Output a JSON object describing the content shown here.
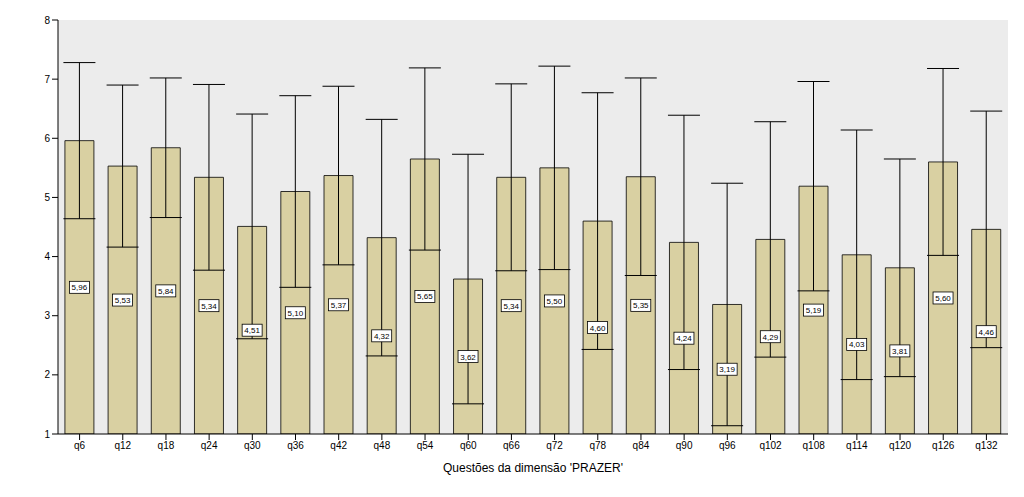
{
  "chart_data": {
    "type": "bar",
    "x_label": "Questões da dimensão 'PRAZER'",
    "categories": [
      "q6",
      "q12",
      "q18",
      "q24",
      "q30",
      "q36",
      "q42",
      "q48",
      "q54",
      "q60",
      "q66",
      "q72",
      "q78",
      "q84",
      "q90",
      "q96",
      "q102",
      "q108",
      "q114",
      "q120",
      "q126",
      "q132"
    ],
    "values": [
      5.96,
      5.53,
      5.84,
      5.34,
      4.51,
      5.1,
      5.37,
      4.32,
      5.65,
      3.62,
      5.34,
      5.5,
      4.6,
      5.35,
      4.24,
      3.19,
      4.29,
      5.19,
      4.03,
      3.81,
      5.6,
      4.46
    ],
    "value_labels": [
      "5,96",
      "5,53",
      "5,84",
      "5,34",
      "4,51",
      "5,10",
      "5,37",
      "4,32",
      "5,65",
      "3,62",
      "5,34",
      "5,50",
      "4,60",
      "5,35",
      "4,24",
      "3,19",
      "4,29",
      "5,19",
      "4,03",
      "3,81",
      "5,60",
      "4,46"
    ],
    "error": [
      1.32,
      1.37,
      1.18,
      1.57,
      1.9,
      1.62,
      1.51,
      2.0,
      1.54,
      2.11,
      1.58,
      1.72,
      2.17,
      1.67,
      2.15,
      2.05,
      1.99,
      1.77,
      2.11,
      1.84,
      1.58,
      2.0
    ],
    "color": "#d9d0a2",
    "ylim": [
      1,
      8
    ],
    "yticks": [
      1,
      2,
      3,
      4,
      5,
      6,
      7,
      8
    ],
    "grid": false,
    "data_labels": true
  }
}
